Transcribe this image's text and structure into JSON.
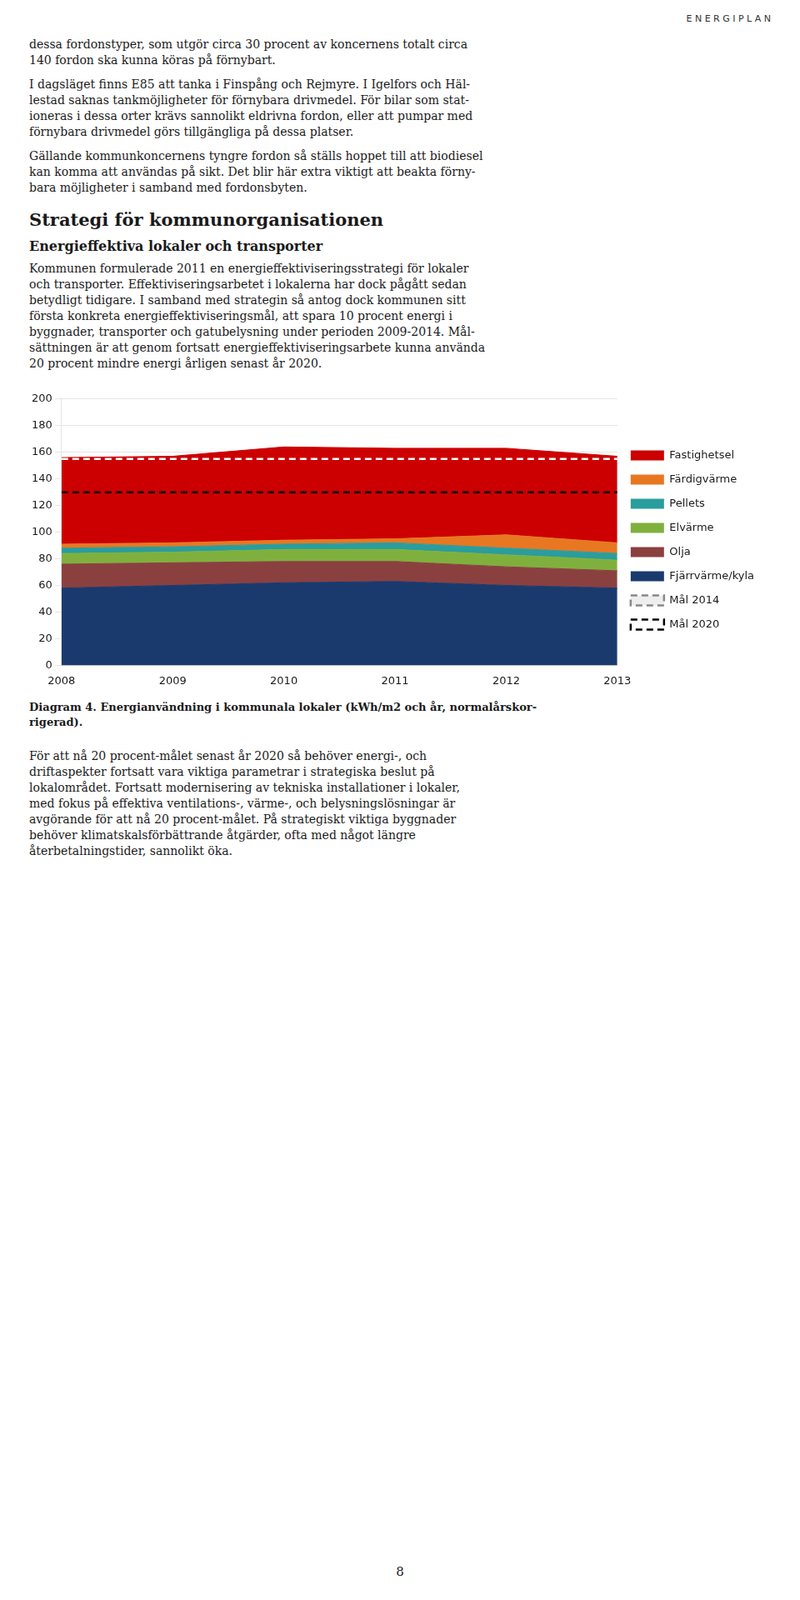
{
  "header_text": "E N E R G I P L A N",
  "paragraphs": [
    "dessa fordonstyper, som utgör circa 30 procent av koncernens totalt circa\n140 fordon ska kunna köras på förnybart.",
    "I dagsläget finns E85 att tanka i Finspång och Rejmyre. I Igelfors och Häl-\nlestad saknas tankmöjligheter för förnybara drivmedel. För bilar som stat-\nioneras i dessa orter krävs sannolikt eldrivna fordon, eller att pumpar med\nförnybara drivmedel görs tillgängliga på dessa platser.",
    "Gällande kommunkoncernens tyngre fordon så ställs hoppet till att biodiesel\nkan komma att användas på sikt. Det blir här extra viktigt att beakta förny-\nbara möjligheter i samband med fordonsbyten."
  ],
  "section_title": "Strategi för kommunorganisationen",
  "subsection_title": "Energieffektiva lokaler och transporter",
  "body_text": "Kommunen formulerade 2011 en energieffektiviseringsstrategi för lokaler\noch transporter. Effektiviseringsarbetet i lokalerna har dock pågått sedan\nbetydligt tidigare. I samband med strategin så antog dock kommunen sitt\nförsta konkreta energieffektiviseringsmål, att spara 10 procent energi i\nbyggnader, transporter och gatubelysning under perioden 2009-2014. Mål-\nsättningen är att genom fortsatt energieffektiviseringsarbete kunna använda\n20 procent mindre energi årligen senast år 2020.",
  "footer_paragraph": "För att nå 20 procent-målet senast år 2020 så behöver energi-, och\ndriftaspekter fortsatt vara viktiga parametrar i strategiska beslut på\nlokalområdet. Fortsatt modernisering av tekniska installationer i lokaler,\nmed fokus på effektiva ventilations-, värme-, och belysningslösningar är\navgörande för att nå 20 procent-målet. På strategiskt viktiga byggnader\nbehöver klimatskalsförbättrande åtgärder, ofta med något längre\nåterbetalningstider, sannolikt öka.",
  "page_number": "8",
  "chart_data": {
    "type": "area",
    "title": "Diagram 4. Energianvändning i kommunala lokaler (kWh/m2 och år, normalårskor-\nrigerad).",
    "stacked": true,
    "x": [
      2008,
      2009,
      2010,
      2011,
      2012,
      2013
    ],
    "xlim": [
      2008,
      2013
    ],
    "xticks": [
      2008,
      2009,
      2010,
      2011,
      2012,
      2013
    ],
    "ylim": [
      0,
      200
    ],
    "yticks": [
      0,
      20,
      40,
      60,
      80,
      100,
      120,
      140,
      160,
      180,
      200
    ],
    "grid": true,
    "legend": "right",
    "series": [
      {
        "name": "Fjärrvärme/kyla",
        "color": "#1a3a6e",
        "values": [
          58,
          60,
          62,
          63,
          60,
          58
        ]
      },
      {
        "name": "Olja",
        "color": "#8b4040",
        "values": [
          18,
          17,
          16,
          15,
          14,
          13
        ]
      },
      {
        "name": "Elvärme",
        "color": "#7fb03e",
        "values": [
          8,
          8,
          9,
          9,
          9,
          8
        ]
      },
      {
        "name": "Pellets",
        "color": "#2a9d9d",
        "values": [
          4,
          4,
          4,
          5,
          5,
          5
        ]
      },
      {
        "name": "Färdigvärme",
        "color": "#e87722",
        "values": [
          3,
          3,
          3,
          3,
          10,
          8
        ]
      },
      {
        "name": "Fastighetsel",
        "color": "#cc0000",
        "values": [
          65,
          65,
          70,
          68,
          65,
          65
        ]
      },
      {
        "name": "Mål 2014",
        "type": "line",
        "line_style": "dashed",
        "color": "#ffffff",
        "values": [
          155,
          155,
          155,
          155,
          155,
          155
        ]
      },
      {
        "name": "Mål 2020",
        "type": "line",
        "line_style": "dashed",
        "color": "#000000",
        "values": [
          130,
          130,
          130,
          130,
          130,
          130
        ]
      }
    ]
  }
}
